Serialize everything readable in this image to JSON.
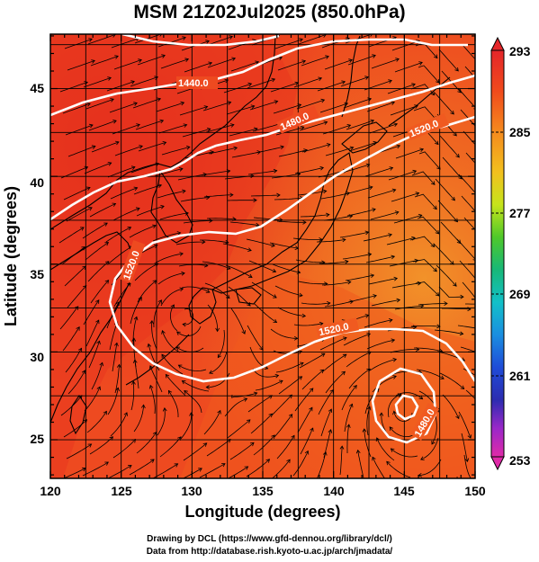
{
  "title": "MSM 21Z02Jul2025 (850.0hPa)",
  "x_axis": {
    "label": "Longitude (degrees)",
    "ticks": [
      "120",
      "125",
      "130",
      "135",
      "140",
      "145",
      "150"
    ]
  },
  "y_axis": {
    "label": "Latitude  (degrees)",
    "ticks": [
      "25",
      "30",
      "35",
      "40",
      "45"
    ]
  },
  "colorbar": {
    "labels": [
      "293",
      "285",
      "277",
      "269",
      "261",
      "253"
    ]
  },
  "contours": [
    {
      "value": "1440.0"
    },
    {
      "value": "1480.0"
    },
    {
      "value": "1520.0"
    },
    {
      "value": "1520.0"
    },
    {
      "value": "1520.0"
    },
    {
      "value": "1480.0"
    }
  ],
  "credits": {
    "line1": "Drawing by DCL (https://www.gfd-dennou.org/library/dcl/)",
    "line2": "Data from http://database.rish.kyoto-u.ac.jp/arch/jmadata/"
  },
  "colors": {
    "field_hot": "#e8301c",
    "field_warm": "#f2601e",
    "field_mid": "#f08a22",
    "contour": "#ffffff",
    "streamline": "#000000",
    "coastline": "#000000"
  }
}
